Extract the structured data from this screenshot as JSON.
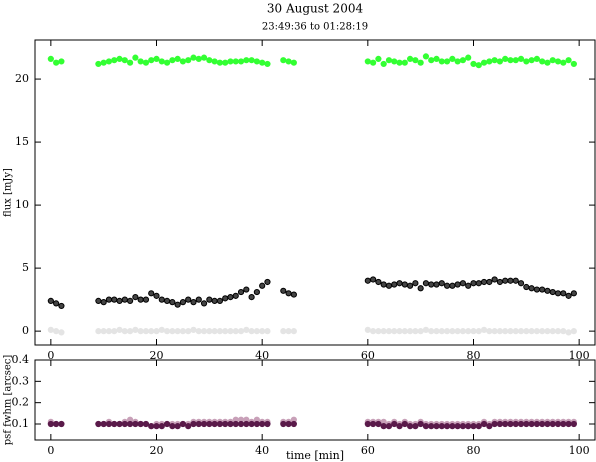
{
  "chart_data": [
    {
      "type": "scatter",
      "title": "30 August 2004",
      "subtitle": "23:49:36 to 01:28:19",
      "ylabel": "flux [mJy]",
      "xlim": [
        -3,
        103
      ],
      "xticks": [
        0,
        20,
        40,
        60,
        80,
        100
      ],
      "ylim": [
        -1.1,
        23.1
      ],
      "yticks": [
        0,
        5,
        10,
        15,
        20
      ],
      "x": [
        0,
        1,
        2,
        9,
        10,
        11,
        12,
        13,
        14,
        15,
        16,
        17,
        18,
        19,
        20,
        21,
        22,
        23,
        24,
        25,
        26,
        27,
        28,
        29,
        30,
        31,
        32,
        33,
        34,
        35,
        36,
        37,
        38,
        39,
        40,
        41,
        44,
        45,
        46,
        60,
        61,
        62,
        63,
        64,
        65,
        66,
        67,
        68,
        69,
        70,
        71,
        72,
        73,
        74,
        75,
        76,
        77,
        78,
        79,
        80,
        81,
        82,
        83,
        84,
        85,
        86,
        87,
        88,
        89,
        90,
        91,
        92,
        93,
        94,
        95,
        96,
        97,
        98,
        99
      ],
      "series": [
        {
          "color": "#33ff33",
          "values": [
            21.6,
            21.3,
            21.4,
            21.2,
            21.3,
            21.4,
            21.5,
            21.6,
            21.5,
            21.3,
            21.7,
            21.4,
            21.3,
            21.5,
            21.6,
            21.4,
            21.3,
            21.5,
            21.6,
            21.4,
            21.5,
            21.7,
            21.6,
            21.7,
            21.5,
            21.4,
            21.3,
            21.3,
            21.4,
            21.4,
            21.4,
            21.5,
            21.5,
            21.4,
            21.3,
            21.2,
            21.5,
            21.4,
            21.3,
            21.4,
            21.3,
            21.6,
            21.2,
            21.5,
            21.4,
            21.3,
            21.3,
            21.6,
            21.5,
            21.3,
            21.8,
            21.5,
            21.6,
            21.4,
            21.4,
            21.6,
            21.4,
            21.5,
            21.7,
            21.2,
            21.1,
            21.3,
            21.4,
            21.5,
            21.4,
            21.6,
            21.5,
            21.5,
            21.6,
            21.4,
            21.5,
            21.6,
            21.4,
            21.3,
            21.5,
            21.4,
            21.3,
            21.5,
            21.2
          ]
        },
        {
          "color": "#444444",
          "values": [
            2.4,
            2.2,
            2.0,
            2.4,
            2.3,
            2.5,
            2.5,
            2.4,
            2.5,
            2.4,
            2.7,
            2.5,
            2.5,
            3.0,
            2.8,
            2.5,
            2.4,
            2.3,
            2.1,
            2.3,
            2.5,
            2.3,
            2.5,
            2.2,
            2.5,
            2.4,
            2.4,
            2.6,
            2.7,
            2.8,
            3.1,
            3.3,
            2.7,
            3.1,
            3.6,
            3.9,
            3.2,
            3.0,
            2.9,
            4.0,
            4.1,
            3.9,
            3.7,
            3.6,
            3.7,
            3.8,
            3.7,
            3.6,
            3.8,
            3.4,
            3.8,
            3.7,
            3.7,
            3.8,
            3.6,
            3.6,
            3.7,
            3.8,
            3.6,
            3.8,
            3.8,
            3.9,
            3.9,
            4.1,
            3.9,
            4.0,
            4.0,
            4.0,
            3.8,
            3.5,
            3.4,
            3.3,
            3.3,
            3.2,
            3.1,
            3.0,
            3.0,
            2.8,
            3.0
          ]
        },
        {
          "color": "#e4e4e4",
          "values": [
            0.1,
            0,
            -0.1,
            0,
            0,
            0,
            0,
            0.1,
            0,
            0,
            0.1,
            0,
            0,
            0,
            0,
            0.1,
            0,
            0,
            0,
            0,
            0,
            0.1,
            0,
            0,
            0,
            0,
            0,
            0,
            0,
            0,
            0,
            0.1,
            0,
            0,
            0,
            0,
            0,
            0,
            0,
            0.1,
            0,
            0,
            0,
            0,
            0,
            0,
            0,
            0,
            0,
            0,
            0.1,
            0,
            0,
            0,
            0,
            0,
            0,
            0,
            0,
            0,
            0,
            0.1,
            0,
            0,
            0,
            0,
            0,
            0,
            0,
            0,
            0,
            0,
            0,
            0,
            0,
            0,
            0,
            -0.1,
            0
          ]
        }
      ]
    },
    {
      "type": "scatter",
      "ylabel": "psf fwhm [arcsec]",
      "xlabel": "time [min]",
      "xlim": [
        -3,
        103
      ],
      "xticks": [
        0,
        20,
        40,
        60,
        80,
        100
      ],
      "ylim": [
        0.025,
        0.4
      ],
      "yticks": [
        0.1,
        0.2,
        0.3,
        0.4
      ],
      "x": [
        0,
        1,
        2,
        9,
        10,
        11,
        12,
        13,
        14,
        15,
        16,
        17,
        18,
        19,
        20,
        21,
        22,
        23,
        24,
        25,
        26,
        27,
        28,
        29,
        30,
        31,
        32,
        33,
        34,
        35,
        36,
        37,
        38,
        39,
        40,
        41,
        44,
        45,
        46,
        60,
        61,
        62,
        63,
        64,
        65,
        66,
        67,
        68,
        69,
        70,
        71,
        72,
        73,
        74,
        75,
        76,
        77,
        78,
        79,
        80,
        81,
        82,
        83,
        84,
        85,
        86,
        87,
        88,
        89,
        90,
        91,
        92,
        93,
        94,
        95,
        96,
        97,
        98,
        99
      ],
      "series": [
        {
          "color": "#c8a0b8",
          "values": [
            0.11,
            0.1,
            0.1,
            0.1,
            0.1,
            0.11,
            0.1,
            0.1,
            0.11,
            0.12,
            0.11,
            0.1,
            0.1,
            0.09,
            0.1,
            0.1,
            0.1,
            0.1,
            0.1,
            0.1,
            0.1,
            0.11,
            0.11,
            0.11,
            0.11,
            0.11,
            0.11,
            0.11,
            0.11,
            0.12,
            0.12,
            0.12,
            0.11,
            0.12,
            0.11,
            0.11,
            0.11,
            0.11,
            0.12,
            0.11,
            0.11,
            0.11,
            0.11,
            0.1,
            0.11,
            0.1,
            0.11,
            0.1,
            0.1,
            0.11,
            0.1,
            0.1,
            0.1,
            0.1,
            0.1,
            0.1,
            0.1,
            0.1,
            0.1,
            0.1,
            0.1,
            0.11,
            0.1,
            0.11,
            0.11,
            0.11,
            0.11,
            0.11,
            0.11,
            0.11,
            0.11,
            0.11,
            0.11,
            0.11,
            0.11,
            0.11,
            0.11,
            0.11,
            0.11
          ]
        },
        {
          "color": "#5a1a4a",
          "values": [
            0.1,
            0.1,
            0.1,
            0.1,
            0.1,
            0.1,
            0.1,
            0.1,
            0.1,
            0.1,
            0.1,
            0.1,
            0.1,
            0.09,
            0.09,
            0.09,
            0.1,
            0.09,
            0.09,
            0.1,
            0.09,
            0.1,
            0.1,
            0.1,
            0.1,
            0.1,
            0.1,
            0.1,
            0.1,
            0.1,
            0.1,
            0.1,
            0.1,
            0.1,
            0.1,
            0.1,
            0.1,
            0.1,
            0.1,
            0.1,
            0.1,
            0.1,
            0.09,
            0.09,
            0.1,
            0.09,
            0.1,
            0.09,
            0.09,
            0.1,
            0.09,
            0.09,
            0.09,
            0.09,
            0.09,
            0.09,
            0.09,
            0.09,
            0.09,
            0.09,
            0.09,
            0.1,
            0.09,
            0.1,
            0.1,
            0.1,
            0.1,
            0.1,
            0.1,
            0.1,
            0.1,
            0.1,
            0.1,
            0.1,
            0.1,
            0.1,
            0.1,
            0.1,
            0.1
          ]
        }
      ]
    }
  ]
}
